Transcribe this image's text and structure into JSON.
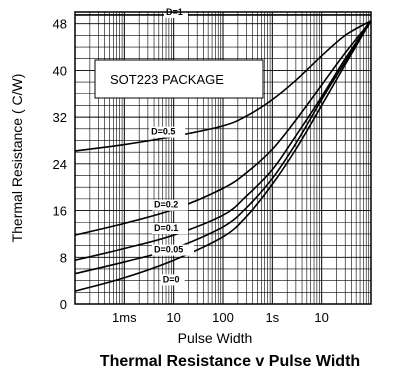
{
  "chart_data": {
    "type": "line",
    "title": "Thermal Resistance v Pulse Width",
    "xlabel": "Pulse Width",
    "ylabel": "Thermal Resistance ( C/W)",
    "x_scale": "log",
    "x_unit": "s",
    "xlim": [
      0.0001,
      100
    ],
    "ylim": [
      0,
      50
    ],
    "x_ticks": [
      {
        "value": 0.001,
        "label": "1ms"
      },
      {
        "value": 0.01,
        "label": "10"
      },
      {
        "value": 0.1,
        "label": "100"
      },
      {
        "value": 1,
        "label": "1s"
      },
      {
        "value": 10,
        "label": "10"
      }
    ],
    "y_ticks": [
      {
        "value": 0,
        "label": "0"
      },
      {
        "value": 8,
        "label": "8"
      },
      {
        "value": 16,
        "label": "16"
      },
      {
        "value": 24,
        "label": "24"
      },
      {
        "value": 32,
        "label": "32"
      },
      {
        "value": 40,
        "label": "40"
      },
      {
        "value": 48,
        "label": "48"
      }
    ],
    "grid": true,
    "annotation": "SOT223 PACKAGE",
    "series": [
      {
        "name": "D=1",
        "label_at": [
          0.007,
          49.5
        ],
        "x": [
          0.0001,
          100
        ],
        "y": [
          49.5,
          49.5
        ]
      },
      {
        "name": "D=0.5",
        "label_at": [
          0.0035,
          29.0
        ],
        "x": [
          0.0001,
          0.001,
          0.01,
          0.1,
          0.3,
          1,
          3,
          10,
          30,
          100
        ],
        "y": [
          26.2,
          27.3,
          28.7,
          30.5,
          32.2,
          35,
          38.3,
          42.5,
          46,
          48.5
        ]
      },
      {
        "name": "D=0.2",
        "label_at": [
          0.004,
          16.5
        ],
        "x": [
          0.0001,
          0.001,
          0.01,
          0.1,
          0.3,
          1,
          3,
          10,
          30,
          100
        ],
        "y": [
          11.8,
          13.8,
          16.2,
          19.8,
          22.5,
          26.5,
          31.5,
          37.5,
          43,
          48.5
        ]
      },
      {
        "name": "D=0.1",
        "label_at": [
          0.004,
          12.5
        ],
        "x": [
          0.0001,
          0.001,
          0.01,
          0.1,
          0.3,
          1,
          3,
          10,
          30,
          100
        ],
        "y": [
          7.5,
          9.5,
          11.8,
          15.2,
          18.5,
          23,
          28.8,
          35.5,
          42,
          48.5
        ]
      },
      {
        "name": "D=0.05",
        "label_at": [
          0.004,
          8.8
        ],
        "x": [
          0.0001,
          0.001,
          0.01,
          0.1,
          0.3,
          1,
          3,
          10,
          30,
          100
        ],
        "y": [
          5.2,
          7.2,
          9.5,
          13.2,
          16.5,
          21.5,
          27.5,
          35,
          41.5,
          48.5
        ]
      },
      {
        "name": "D=0",
        "label_at": [
          0.006,
          3.7
        ],
        "x": [
          0.0001,
          0.001,
          0.01,
          0.1,
          0.3,
          1,
          3,
          10,
          30,
          100
        ],
        "y": [
          2.2,
          4.5,
          7.5,
          11.5,
          15,
          20.5,
          26.5,
          34,
          41,
          48.5
        ]
      }
    ]
  }
}
